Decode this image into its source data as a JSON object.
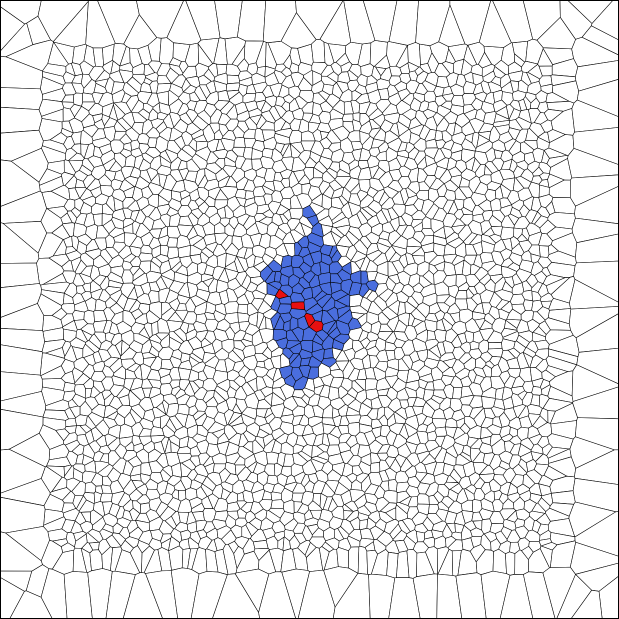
{
  "diagram": {
    "type": "voronoi-tessellation",
    "background_color": "#ffffff",
    "edge_color": "#000000",
    "region_colors": {
      "unselected": "#ffffff",
      "selected_region": "#4a6ede",
      "seed_cells": "#e81010"
    }
  }
}
